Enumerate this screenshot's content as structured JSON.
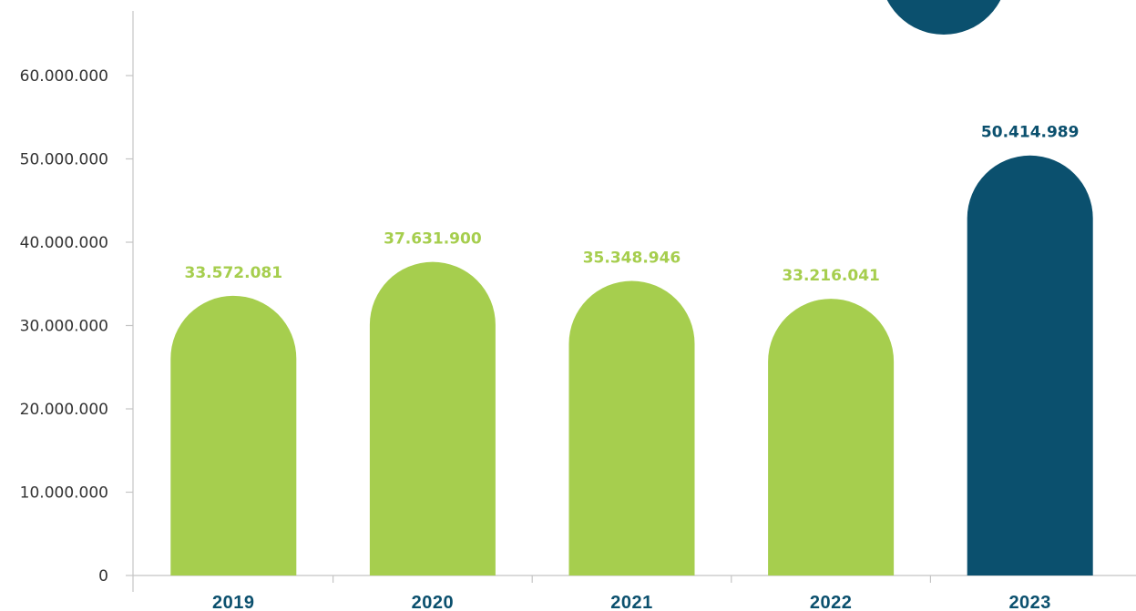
{
  "chart_data": {
    "type": "bar",
    "categories": [
      "2019",
      "2020",
      "2021",
      "2022",
      "2023"
    ],
    "values": [
      33572081,
      37631900,
      35348946,
      33216041,
      50414989
    ],
    "value_labels": [
      "33.572.081",
      "37.631.900",
      "35.348.946",
      "33.216.041",
      "50.414.989"
    ],
    "ylim": [
      0,
      60000000
    ],
    "yticks": [
      0,
      10000000,
      20000000,
      30000000,
      40000000,
      50000000,
      60000000
    ],
    "ytick_labels": [
      "0",
      "10.000.000",
      "20.000.000",
      "30.000.000",
      "40.000.000",
      "50.000.000",
      "60.000.000"
    ],
    "title": "",
    "xlabel": "",
    "ylabel": "",
    "grid": false,
    "legend": "none",
    "bar_shape": "rounded-top",
    "colors": {
      "default_bar": "#a6ce4e",
      "highlight_bar": "#0b506e",
      "highlight_category": "2023",
      "axis": "#c4c4c4",
      "tick_text": "#333333",
      "decoration": "#0b506e"
    }
  }
}
